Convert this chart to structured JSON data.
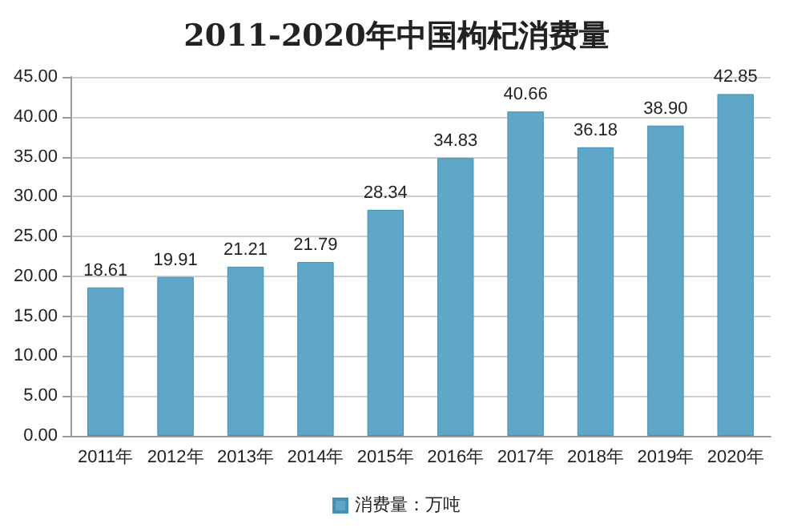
{
  "chart_data": {
    "type": "bar",
    "title": "2011-2020年中国枸杞消费量",
    "categories": [
      "2011年",
      "2012年",
      "2013年",
      "2014年",
      "2015年",
      "2016年",
      "2017年",
      "2018年",
      "2019年",
      "2020年"
    ],
    "series": [
      {
        "name": "消费量：万吨",
        "color": "#5ea7c8",
        "values": [
          18.61,
          19.91,
          21.21,
          21.79,
          28.34,
          34.83,
          40.66,
          36.18,
          38.9,
          42.85
        ]
      }
    ],
    "ylim": [
      0,
      45
    ],
    "yticks": [
      {
        "value": 0,
        "label": "0.00"
      },
      {
        "value": 5,
        "label": "5.00"
      },
      {
        "value": 10,
        "label": "10.00"
      },
      {
        "value": 15,
        "label": "15.00"
      },
      {
        "value": 20,
        "label": "20.00"
      },
      {
        "value": 25,
        "label": "25.00"
      },
      {
        "value": 30,
        "label": "30.00"
      },
      {
        "value": 35,
        "label": "35.00"
      },
      {
        "value": 40,
        "label": "40.00"
      },
      {
        "value": 45,
        "label": "45.00"
      }
    ],
    "value_labels": [
      "18.61",
      "19.91",
      "21.21",
      "21.79",
      "28.34",
      "34.83",
      "40.66",
      "36.18",
      "38.90",
      "42.85"
    ],
    "grid": true,
    "legend": "bottom"
  }
}
